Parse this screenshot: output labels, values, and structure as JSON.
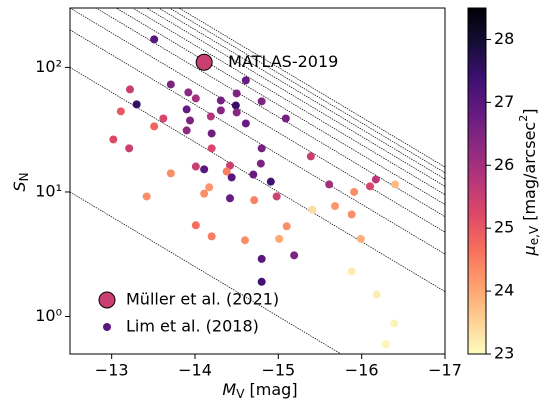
{
  "chart_data": {
    "type": "scatter",
    "xlabel": {
      "main": "M",
      "sub": "V",
      "rest": " [mag]"
    },
    "ylabel": {
      "main": "S",
      "sub": "N"
    },
    "xlim": [
      -12.5,
      -17
    ],
    "xticks": [
      {
        "value": -13,
        "label": "−13"
      },
      {
        "value": -14,
        "label": "−14"
      },
      {
        "value": -15,
        "label": "−15"
      },
      {
        "value": -16,
        "label": "−16"
      },
      {
        "value": -17,
        "label": "−17"
      }
    ],
    "ylim": [
      0.5,
      300
    ],
    "yticks": [
      {
        "value": 1,
        "label": "10⁰"
      },
      {
        "value": 10,
        "label": "10¹"
      },
      {
        "value": 100,
        "label": "10²"
      }
    ],
    "yscale": "log",
    "colormap": "magma_r",
    "clim": [
      23,
      28.5
    ],
    "cticks": [
      23,
      24,
      25,
      26,
      27,
      28
    ],
    "clabel": {
      "main": "μ",
      "sub": "e,V",
      "rest": " [mag/arcsec",
      "sup": "2",
      "end": "]"
    },
    "sn_relation": {
      "n_gc": [
        1,
        10,
        20,
        30,
        40,
        50,
        60,
        70,
        80,
        90,
        100
      ],
      "m_ref": -15,
      "slope": 0.4
    },
    "legend": "lower left",
    "series": [
      {
        "name": "Müller et al. (2021)",
        "x": [
          -14.11
        ],
        "values": [
          110
        ],
        "color_values": [
          25.5
        ],
        "annotation": "MATLAS-2019"
      },
      {
        "name": "Lim et al. (2018)",
        "x": [
          -13.51,
          -13.22,
          -13.3,
          -13.11,
          -13.62,
          -13.51,
          -13.02,
          -13.21,
          -13.71,
          -13.92,
          -14.01,
          -13.9,
          -13.94,
          -13.9,
          -14.2,
          -14.19,
          -14.2,
          -14.31,
          -14.31,
          -14.5,
          -14.49,
          -14.61,
          -14.5,
          -14.8,
          -14.61,
          -15.09,
          -14.8,
          -14.79,
          -14.42,
          -14.01,
          -14.11,
          -14.38,
          -14.44,
          -13.71,
          -14.17,
          -14.11,
          -13.42,
          -14.42,
          -14.71,
          -14.7,
          -14.91,
          -14.98,
          -15.39,
          -15.61,
          -16.17,
          -16.1,
          -15.91,
          -16.4,
          -15.41,
          -15.68,
          -15.88,
          -14.01,
          -14.2,
          -14.6,
          -15.1,
          -15.01,
          -15.99,
          -15.19,
          -14.8,
          -14.8,
          -15.88,
          -16.18,
          -16.39,
          -16.29
        ],
        "values": [
          168,
          66.6,
          50.5,
          44.4,
          38.9,
          33.6,
          26.4,
          22.4,
          73,
          63,
          56.4,
          46,
          37.5,
          31.2,
          29.5,
          40.4,
          22.4,
          54.3,
          45.2,
          61.8,
          49.5,
          78.7,
          43.5,
          53.4,
          35.5,
          38.9,
          22.4,
          16.9,
          16.3,
          16,
          15.2,
          14.6,
          13.1,
          14.1,
          10.9,
          9.7,
          9.2,
          8.9,
          8.6,
          13.8,
          12.1,
          9.2,
          19.3,
          11.5,
          12.6,
          11.1,
          10,
          11.5,
          7.2,
          7.7,
          6.6,
          5.4,
          4.4,
          4.1,
          5.3,
          4.2,
          4.2,
          3.1,
          2.9,
          1.9,
          2.3,
          1.5,
          0.88,
          0.6
        ],
        "color_values": [
          27,
          25.5,
          27.5,
          25,
          25.3,
          24.8,
          25.2,
          25.5,
          26.5,
          26.3,
          26,
          26.8,
          26.5,
          26.3,
          26.7,
          25.8,
          25.3,
          26.6,
          26.4,
          26.5,
          27.5,
          26.8,
          26.4,
          26.5,
          26.8,
          26.6,
          26.6,
          26.5,
          25.5,
          25.5,
          27,
          24.5,
          27,
          24.3,
          24.2,
          24.3,
          24.3,
          26.8,
          24.4,
          26.8,
          27.3,
          25.4,
          25.5,
          26,
          25.7,
          25.3,
          24.3,
          23.8,
          23.4,
          24.2,
          24.3,
          24.7,
          24.5,
          24.3,
          24.3,
          24,
          23.9,
          26.5,
          27,
          27.3,
          23.2,
          23.2,
          23.1,
          23.1
        ]
      }
    ]
  }
}
